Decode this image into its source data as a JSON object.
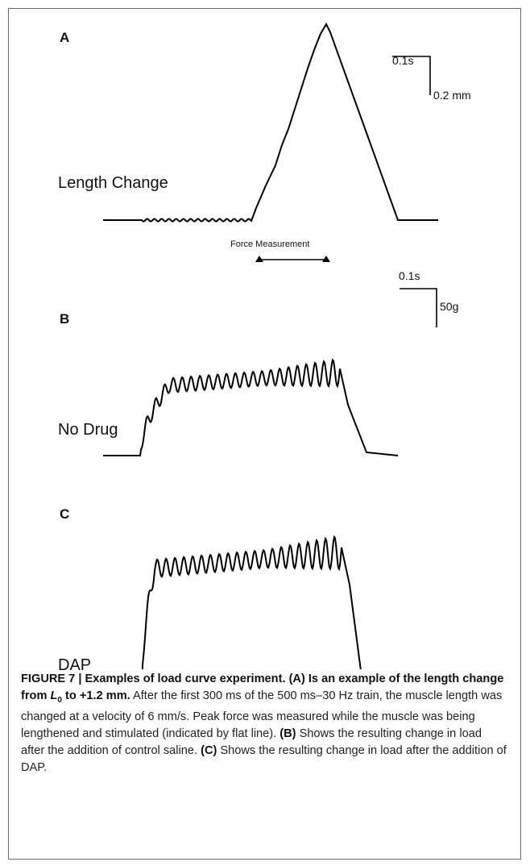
{
  "panels": {
    "a": {
      "letter": "A",
      "trace_label": "Length Change",
      "scale_time": "0.1s",
      "scale_amp": "0.2 mm",
      "force_label": "Force Measurement"
    },
    "b": {
      "letter": "B",
      "trace_label": "No Drug",
      "scale_time": "0.1s",
      "scale_amp": "50g"
    },
    "c": {
      "letter": "C",
      "trace_label": "DAP"
    }
  },
  "caption": {
    "s1": "FIGURE 7 | Examples of load curve experiment. ",
    "s2": "(A)",
    "s3": " Is an example of the length change from ",
    "s4_L": "L",
    "s4_sub": "0",
    "s5": " to +1.2 mm.",
    "s6": " After the first 300 ms of the 500 ms–30 Hz train, the muscle length was changed at a velocity of 6 mm/s. Peak force was measured while the muscle was being lengthened and stimulated (indicated by flat line). ",
    "s7": "(B)",
    "s8": " Shows the resulting change in load after the addition of control saline. ",
    "s9": "(C)",
    "s10": " Shows the resulting change in load after the addition of DAP."
  }
}
